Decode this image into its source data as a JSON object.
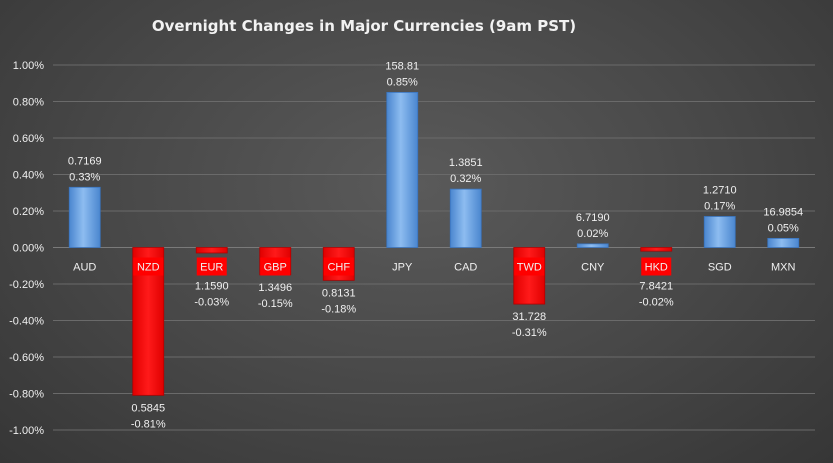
{
  "chart_data": {
    "type": "bar",
    "title": "Overnight Changes in Major Currencies (9am PST)",
    "xlabel": "",
    "ylabel": "",
    "ylim": [
      -1.0,
      1.0
    ],
    "ytick_values": [
      1.0,
      0.8,
      0.6,
      0.4,
      0.2,
      0.0,
      -0.2,
      -0.4,
      -0.6,
      -0.8,
      -1.0
    ],
    "ytick_labels": [
      "1.00%",
      "0.80%",
      "0.60%",
      "0.40%",
      "0.20%",
      "0.00%",
      "-0.20%",
      "-0.40%",
      "-0.60%",
      "-0.80%",
      "-1.00%"
    ],
    "grid": true,
    "legend": "none",
    "categories": [
      "AUD",
      "NZD",
      "EUR",
      "GBP",
      "CHF",
      "JPY",
      "CAD",
      "TWD",
      "CNY",
      "HKD",
      "SGD",
      "MXN"
    ],
    "values": [
      0.33,
      -0.81,
      -0.03,
      -0.15,
      -0.18,
      0.85,
      0.32,
      -0.31,
      0.02,
      -0.02,
      0.17,
      0.05
    ],
    "rates": [
      "0.7169",
      "0.5845",
      "1.1590",
      "1.3496",
      "0.8131",
      "158.81",
      "1.3851",
      "31.728",
      "6.7190",
      "7.8421",
      "1.2710",
      "16.9854"
    ],
    "pct_labels": [
      "0.33%",
      "-0.81%",
      "-0.03%",
      "-0.15%",
      "-0.18%",
      "0.85%",
      "0.32%",
      "-0.31%",
      "0.02%",
      "-0.02%",
      "0.17%",
      "0.05%"
    ],
    "colors": {
      "positive": "#5b9be0",
      "positive_light": "#8dbcf0",
      "negative": "#ff0000",
      "negative_dark": "#c40000",
      "text": "#f0f0f0",
      "grid": "#6a6a6a"
    }
  }
}
